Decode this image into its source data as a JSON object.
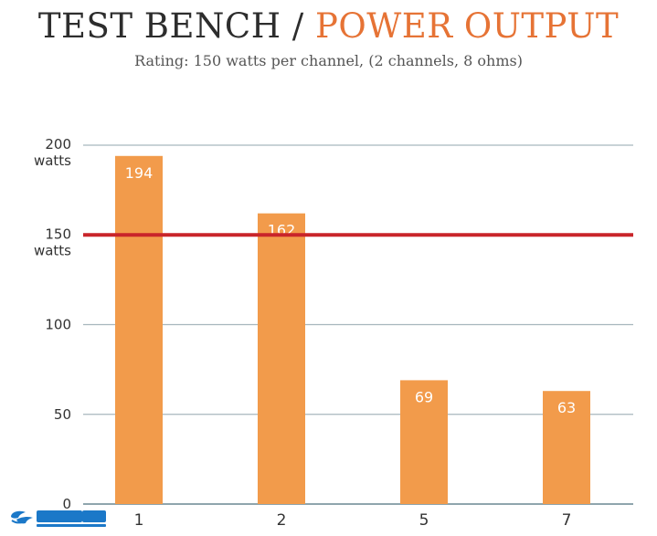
{
  "header": {
    "title_main": "TEST BENCH",
    "title_separator": "/",
    "title_accent": "POWER OUTPUT",
    "subtitle": "Rating: 150 watts per channel, (2 channels, 8 ohms)"
  },
  "colors": {
    "bar": "#f29b4b",
    "reference_line": "#c9252a",
    "grid": "#a7b6bd",
    "accent": "#e67335",
    "text": "#333333"
  },
  "chart_data": {
    "type": "bar",
    "categories": [
      "1",
      "2",
      "5",
      "7"
    ],
    "values": [
      194,
      162,
      69,
      63
    ],
    "ylim": [
      0,
      200
    ],
    "y_ticks": [
      {
        "value": 0,
        "line1": "0",
        "line2": ""
      },
      {
        "value": 50,
        "line1": "50",
        "line2": ""
      },
      {
        "value": 100,
        "line1": "100",
        "line2": ""
      },
      {
        "value": 150,
        "line1": "150",
        "line2": "watts"
      },
      {
        "value": 200,
        "line1": "200",
        "line2": "watts"
      }
    ],
    "reference_value": 150,
    "grid": true
  },
  "watermark": {
    "name": "JDBBS logo"
  }
}
